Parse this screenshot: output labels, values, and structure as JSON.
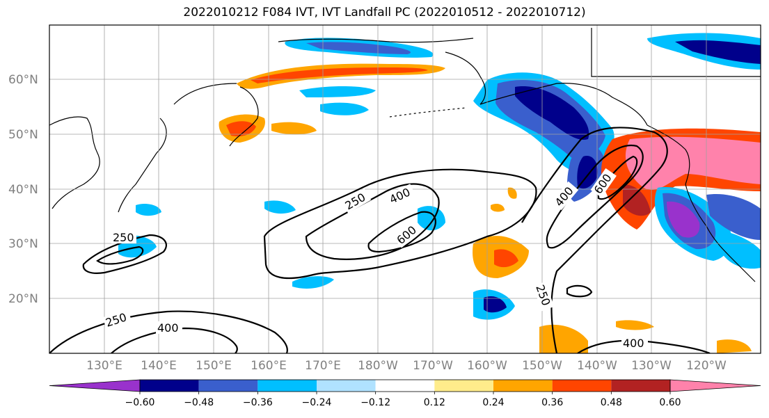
{
  "title": "2022010212 F084 IVT, IVT Landfall PC (2022010512 - 2022010712)",
  "lat_labels": [
    "60°N",
    "50°N",
    "40°N",
    "30°N",
    "20°N"
  ],
  "lon_labels": [
    "130°E",
    "140°E",
    "150°E",
    "160°E",
    "170°E",
    "180°W",
    "170°W",
    "160°W",
    "150°W",
    "140°W",
    "130°W",
    "120°W"
  ],
  "contour_labels": {
    "c250_w": "250",
    "c250_mid": "250",
    "c400_mid": "400",
    "c600_mid": "600",
    "c400_east": "400",
    "c600_east": "600",
    "c250_east": "250",
    "c250_sw": "250",
    "c400_sw": "400",
    "c400_s": "400"
  },
  "colorbar": {
    "ticks": [
      "−0.60",
      "−0.48",
      "−0.36",
      "−0.24",
      "−0.12",
      "0.12",
      "0.24",
      "0.36",
      "0.48",
      "0.60"
    ],
    "colors": [
      "#9932CC",
      "#00008B",
      "#3A5FCD",
      "#00BFFF",
      "#B0E2FF",
      "#FFFFFF",
      "#FFEC8B",
      "#FFA500",
      "#FF4500",
      "#B22222",
      "#FF82AB"
    ]
  },
  "colors": {
    "land": "#000000",
    "grid": "#a0a0a0"
  }
}
